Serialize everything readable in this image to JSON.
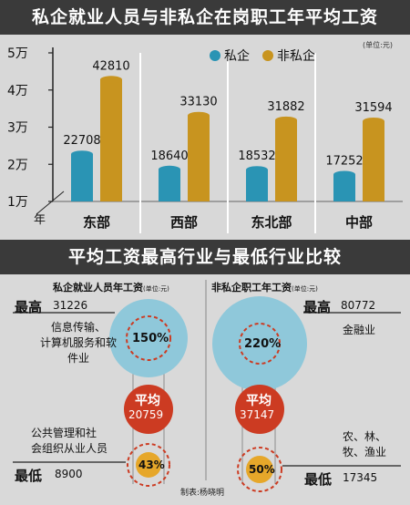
{
  "header": {
    "title": "私企就业人员与非私企在岗职工年平均工资",
    "unit": "(单位:元)"
  },
  "chart_data": [
    {
      "type": "bar",
      "title": "私企就业人员与非私企在岗职工年平均工资",
      "unit_note": "(单位:元)",
      "categories": [
        "东部",
        "西部",
        "东北部",
        "中部"
      ],
      "series": [
        {
          "name": "私企",
          "color": "#2a94b4",
          "values": [
            22708,
            18640,
            18532,
            17252
          ]
        },
        {
          "name": "非私企",
          "color": "#c8941f",
          "values": [
            42810,
            33130,
            31882,
            31594
          ]
        }
      ],
      "data_labels": {
        "私企": [
          "22708",
          "18640",
          "18532",
          "17252"
        ],
        "非私企": [
          "42810",
          "33130",
          "31882",
          "31594"
        ]
      },
      "ylim": [
        10000,
        50000
      ],
      "yticks": [
        10000,
        20000,
        30000,
        40000,
        50000
      ],
      "ytick_labels": [
        "1万",
        "2万",
        "3万",
        "4万",
        "5万"
      ],
      "axis_corner_label": "年",
      "legend_position": "top-right",
      "grid": false
    }
  ],
  "comparison": {
    "title": "平均工资最高行业与最低行业比较",
    "left": {
      "heading": "私企就业人员年工资",
      "unit": "(单位:元)",
      "high_label": "最高",
      "high_value": "31226",
      "high_industry": "信息传输、\n计算机服务和软\n件业",
      "high_pct": "150%",
      "avg_label": "平均",
      "avg_value": "20759",
      "low_industry": "公共管理和社\n会组织从业人员",
      "low_pct": "43%",
      "low_label": "最低",
      "low_value": "8900"
    },
    "right": {
      "heading": "非私企职工年工资",
      "unit": "(单位:元)",
      "high_label": "最高",
      "high_value": "80772",
      "high_industry": "金融业",
      "high_pct": "220%",
      "avg_label": "平均",
      "avg_value": "37147",
      "low_industry": "农、林、\n牧、渔业",
      "low_pct": "50%",
      "low_label": "最低",
      "low_value": "17345"
    },
    "credit": "制表:杨晓明"
  },
  "colors": {
    "private": "#2a94b4",
    "nonprivate": "#c8941f",
    "circle_light": "#8fc8da",
    "avg_red": "#cc3b22",
    "low_gold": "#e6a72a",
    "banner": "#3a3a3a",
    "panel": "#d8d8d8"
  }
}
